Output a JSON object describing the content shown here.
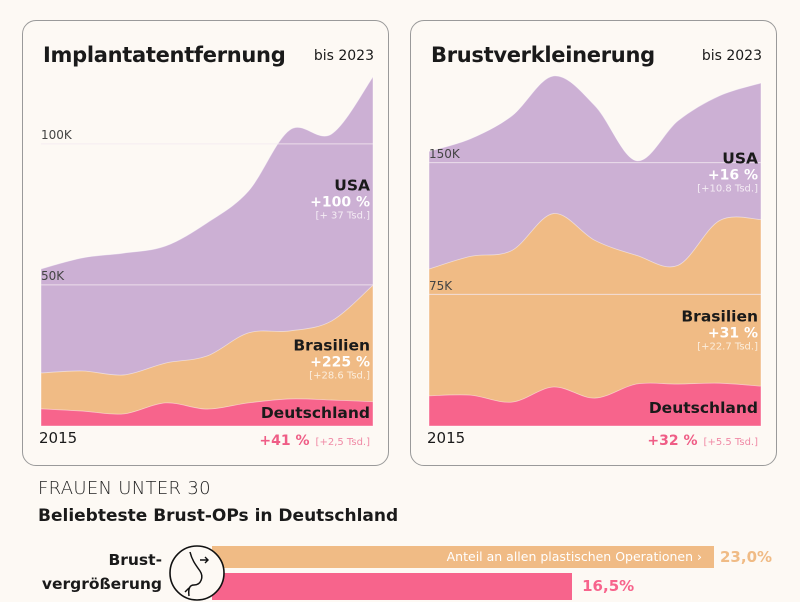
{
  "colors": {
    "usa": "#ccb0d4",
    "brasilien": "#f0bb85",
    "deutschland": "#f7648c",
    "grid": "#f3e9f1"
  },
  "chart_data": [
    {
      "type": "area",
      "stacked": true,
      "title": "Implantatentfernung",
      "period": "bis 2023",
      "x": [
        2015,
        2016,
        2017,
        2018,
        2019,
        2020,
        2021,
        2022,
        2023
      ],
      "x_label_start": "2015",
      "ylim": [
        0,
        140
      ],
      "grid_lines": [
        {
          "value": 50,
          "label": "50K"
        },
        {
          "value": 100,
          "label": "100K"
        }
      ],
      "series": [
        {
          "name": "Deutschland",
          "values": [
            6.1,
            5.3,
            4.3,
            8.2,
            6.0,
            8.2,
            9.6,
            9.2,
            8.6
          ],
          "change_pct": "+41 %",
          "change_abs": "[+2,5 Tsd.]"
        },
        {
          "name": "Brasilien",
          "values": [
            12.7,
            14.2,
            13.8,
            14.1,
            18.8,
            24.8,
            24.1,
            28.0,
            41.3
          ],
          "change_pct": "+225 %",
          "change_abs": "[+28.6 Tsd.]"
        },
        {
          "name": "USA",
          "values": [
            36.9,
            40.1,
            43.2,
            41.5,
            47.2,
            50.3,
            71.3,
            66.3,
            73.9
          ],
          "change_pct": "+100 %",
          "change_abs": "[+ 37 Tsd.]"
        }
      ]
    },
    {
      "type": "area",
      "stacked": true,
      "title": "Brustverkleinerung",
      "period": "bis 2023",
      "x": [
        2015,
        2016,
        2017,
        2018,
        2019,
        2020,
        2021,
        2022,
        2023
      ],
      "x_label_start": "2015",
      "ylim": [
        0,
        225
      ],
      "grid_lines": [
        {
          "value": 75,
          "label": "75K"
        },
        {
          "value": 150,
          "label": "150K"
        }
      ],
      "series": [
        {
          "name": "Deutschland",
          "values": [
            17.2,
            17.6,
            13.6,
            22.2,
            15.9,
            23.9,
            23.9,
            24.4,
            22.7
          ],
          "change_pct": "+32 %",
          "change_abs": "[+5.5 Tsd.]"
        },
        {
          "name": "Brasilien",
          "values": [
            72.2,
            79.0,
            86.4,
            98.8,
            89.8,
            73.3,
            67.6,
            92.6,
            94.9
          ],
          "change_pct": "+31 %",
          "change_abs": "[+22.7 Tsd.]"
        },
        {
          "name": "USA",
          "values": [
            67.0,
            67.0,
            76.7,
            78.4,
            76.7,
            53.9,
            82.4,
            71.1,
            77.8
          ],
          "change_pct": "+16 %",
          "change_abs": "[+10.8 Tsd.]"
        }
      ]
    }
  ],
  "bottom": {
    "kicker": "FRAUEN UNTER 30",
    "subtitle": "Beliebteste Brust-OPs in Deutschland",
    "category_line1": "Brust-",
    "category_line2": "vergrößerung",
    "icon": "breast-augmentation-icon",
    "bars": [
      {
        "note": "Anteil an allen plastischen Operationen ›",
        "value": 23.0,
        "label": "23,0%",
        "color": "#f0bb85"
      },
      {
        "value": 16.5,
        "label": "16,5%",
        "color": "#f7648c"
      }
    ]
  }
}
